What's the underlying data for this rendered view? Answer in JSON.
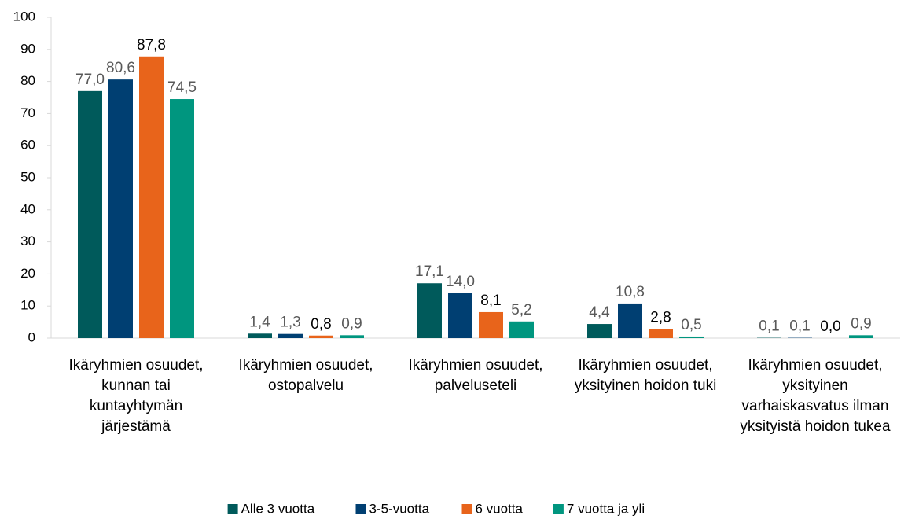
{
  "chart_data": {
    "type": "bar",
    "categories": [
      "Ikäryhmien osuudet, kunnan tai kuntayhtymän järjestämä",
      "Ikäryhmien osuudet, ostopalvelu",
      "Ikäryhmien osuudet, palveluseteli",
      "Ikäryhmien osuudet, yksityinen hoidon tuki",
      "Ikäryhmien osuudet, yksityinen varhaiskasvatus ilman yksityistä hoidon tukea"
    ],
    "series": [
      {
        "name": "Alle 3 vuotta",
        "color": "#005a5b",
        "label_color": "#595959",
        "values": [
          77.0,
          1.4,
          17.1,
          4.4,
          0.1
        ],
        "value_labels": [
          "77,0",
          "1,4",
          "17,1",
          "4,4",
          "0,1"
        ]
      },
      {
        "name": "3-5-vuotta",
        "color": "#003f72",
        "label_color": "#595959",
        "values": [
          80.6,
          1.3,
          14.0,
          10.8,
          0.1
        ],
        "value_labels": [
          "80,6",
          "1,3",
          "14,0",
          "10,8",
          "0,1"
        ]
      },
      {
        "name": "6 vuotta",
        "color": "#e8641b",
        "label_color": "#000000",
        "values": [
          87.8,
          0.8,
          8.1,
          2.8,
          0.0
        ],
        "value_labels": [
          "87,8",
          "0,8",
          "8,1",
          "2,8",
          "0,0"
        ]
      },
      {
        "name": "7 vuotta ja yli",
        "color": "#00967f",
        "label_color": "#595959",
        "values": [
          74.5,
          0.9,
          5.2,
          0.5,
          0.9
        ],
        "value_labels": [
          "74,5",
          "0,9",
          "5,2",
          "0,5",
          "0,9"
        ]
      }
    ],
    "ylim": [
      0,
      100
    ],
    "yticks": [
      0,
      10,
      20,
      30,
      40,
      50,
      60,
      70,
      80,
      90,
      100
    ],
    "grid": false,
    "legend": "bottom"
  }
}
